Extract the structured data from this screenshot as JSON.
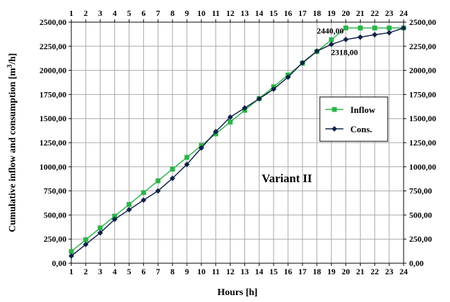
{
  "chart_data": {
    "type": "line",
    "title": "",
    "xlabel": "Hours [h]",
    "ylabel": "Cumulative inflow and consumption [m",
    "ylabel_sup": "3",
    "ylabel_suffix": "/h]",
    "x": [
      1,
      2,
      3,
      4,
      5,
      6,
      7,
      8,
      9,
      10,
      11,
      12,
      13,
      14,
      15,
      16,
      17,
      18,
      19,
      20,
      21,
      22,
      23,
      24
    ],
    "x_tick_labels": [
      "1",
      "2",
      "3",
      "4",
      "5",
      "6",
      "7",
      "8",
      "9",
      "10",
      "11",
      "12",
      "13",
      "14",
      "15",
      "16",
      "17",
      "18",
      "19",
      "20",
      "21",
      "22",
      "23",
      "24"
    ],
    "ylim": [
      0,
      2500
    ],
    "y_ticks": [
      0,
      250,
      500,
      750,
      1000,
      1250,
      1500,
      1750,
      2000,
      2250,
      2500
    ],
    "y_tick_labels": [
      "0,00",
      "250,00",
      "500,00",
      "750,00",
      "1000,00",
      "1250,00",
      "1500,00",
      "1750,00",
      "2000,00",
      "2250,00",
      "2500,00"
    ],
    "grid": true,
    "legend_position": "right",
    "series": [
      {
        "name": "Inflow",
        "color": "#2bb34a",
        "marker": "square",
        "values": [
          122,
          244,
          366,
          488,
          610,
          732,
          854,
          976,
          1098,
          1220,
          1342,
          1464,
          1586,
          1708,
          1830,
          1952,
          2074,
          2196,
          2318,
          2440,
          2440,
          2440,
          2440,
          2440
        ]
      },
      {
        "name": "Cons.",
        "color": "#0f2148",
        "marker": "diamond",
        "values": [
          75,
          195,
          315,
          455,
          555,
          655,
          750,
          880,
          1025,
          1195,
          1365,
          1515,
          1610,
          1705,
          1805,
          1930,
          2080,
          2200,
          2270,
          2320,
          2345,
          2370,
          2390,
          2440
        ]
      }
    ],
    "annotations": [
      {
        "text": "2440,00",
        "x": 20,
        "y": 2440
      },
      {
        "text": "2318,00",
        "x": 20,
        "y": 2318
      }
    ],
    "inner_label": "Variant II"
  }
}
